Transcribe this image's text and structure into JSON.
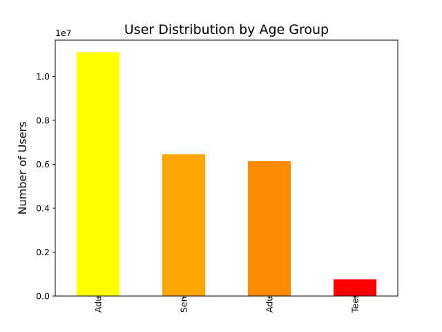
{
  "chart_data": {
    "type": "bar",
    "title": "User Distribution by Age Group",
    "xlabel": "",
    "ylabel": "Number of Users",
    "y_offset_label": "1e7",
    "y_scale": 10000000,
    "categories": [
      "Adults",
      "Seniors",
      "Adults",
      "Teenagers"
    ],
    "values": [
      11100000,
      6450000,
      6140000,
      760000
    ],
    "bar_colors": [
      "#ffff00",
      "#ffa500",
      "#ff8c00",
      "#ff0000"
    ],
    "ylim": [
      0,
      11650000
    ],
    "yticks": [
      0,
      0.2,
      0.4,
      0.6,
      0.8,
      1.0
    ],
    "ytick_labels": [
      "0.0",
      "0.2",
      "0.4",
      "0.6",
      "0.8",
      "1.0"
    ],
    "grid": false,
    "legend": "none",
    "xtick_rotation": 90
  }
}
